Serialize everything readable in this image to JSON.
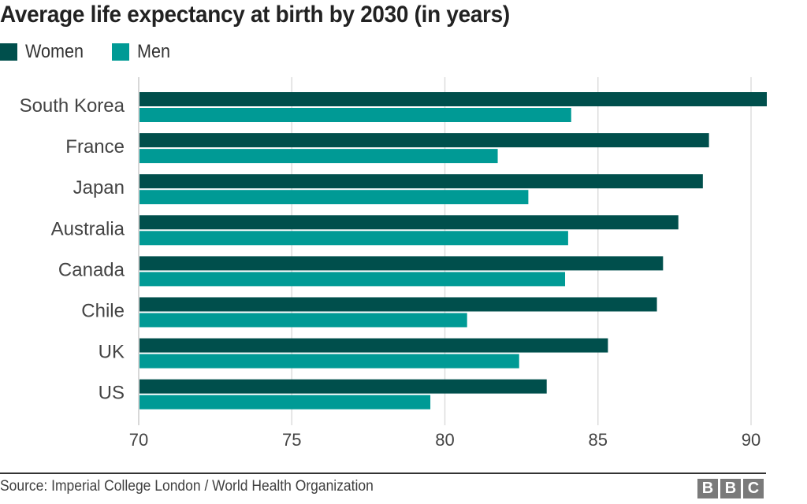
{
  "chart_data": {
    "type": "bar",
    "orientation": "horizontal",
    "title": "Average life expectancy at birth by 2030 (in years)",
    "xlabel": "",
    "ylabel": "",
    "xlim": [
      70,
      90.5
    ],
    "xticks": [
      70,
      75,
      80,
      85,
      90
    ],
    "xtick_labels": [
      "70",
      "75",
      "80",
      "85",
      "90"
    ],
    "grid": true,
    "legend_position": "top-left",
    "categories": [
      "South Korea",
      "France",
      "Japan",
      "Australia",
      "Canada",
      "Chile",
      "UK",
      "US"
    ],
    "series": [
      {
        "name": "Women",
        "color": "#004f4c",
        "values": [
          90.8,
          88.6,
          88.4,
          87.6,
          87.1,
          86.9,
          85.3,
          83.3
        ]
      },
      {
        "name": "Men",
        "color": "#009a95",
        "values": [
          84.1,
          81.7,
          82.7,
          84.0,
          83.9,
          80.7,
          82.4,
          79.5
        ]
      }
    ]
  },
  "legend": {
    "items": [
      {
        "label": "Women",
        "color": "#004f4c"
      },
      {
        "label": "Men",
        "color": "#009a95"
      }
    ]
  },
  "footer": {
    "source": "Source: Imperial College London / World Health Organization",
    "logo": [
      "B",
      "B",
      "C"
    ]
  }
}
